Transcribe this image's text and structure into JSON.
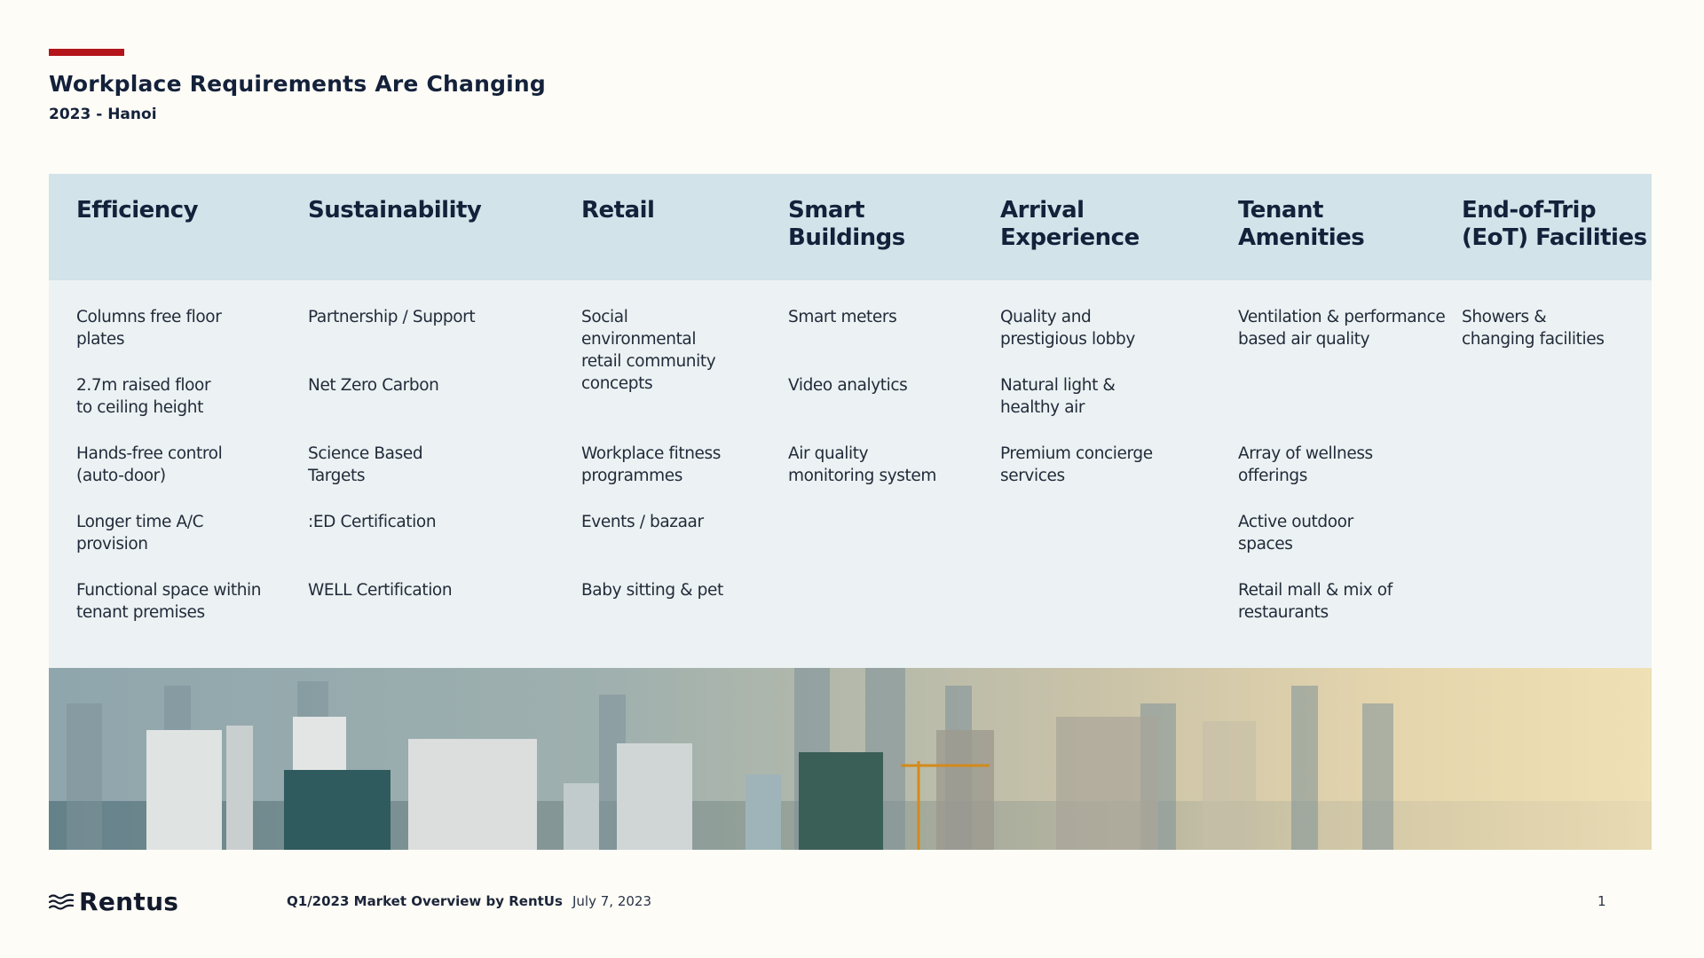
{
  "header": {
    "title": "Workplace Requirements Are Changing",
    "subtitle": "2023 - Hanoi",
    "accent_color": "#b3151a"
  },
  "table": {
    "columns": [
      {
        "heading": [
          "Efficiency"
        ],
        "items": [
          [
            "Columns free floor",
            "plates"
          ],
          [
            "2.7m raised floor",
            "to ceiling height"
          ],
          [
            "Hands-free control",
            "(auto-door)"
          ],
          [
            "Longer time A/C",
            "provision"
          ],
          [
            "Functional space within",
            "tenant premises"
          ]
        ]
      },
      {
        "heading": [
          "Sustainability"
        ],
        "items": [
          [
            "Partnership / Support"
          ],
          [
            "Net Zero Carbon"
          ],
          [
            "Science Based",
            "Targets"
          ],
          [
            ":ED Certification"
          ],
          [
            "WELL Certification"
          ]
        ]
      },
      {
        "heading": [
          "Retail"
        ],
        "items": [
          [
            "Social",
            "environmental",
            "retail community",
            "concepts"
          ],
          [],
          [
            "Workplace fitness",
            "programmes"
          ],
          [
            "Events / bazaar"
          ],
          [
            "Baby sitting & pet"
          ]
        ]
      },
      {
        "heading": [
          "Smart",
          "Buildings"
        ],
        "items": [
          [
            "Smart meters"
          ],
          [
            "Video analytics"
          ],
          [
            "Air quality",
            "monitoring system"
          ],
          [],
          []
        ]
      },
      {
        "heading": [
          "Arrival",
          "Experience"
        ],
        "items": [
          [
            "Quality and",
            "prestigious lobby"
          ],
          [
            "Natural light &",
            "healthy air"
          ],
          [
            "Premium concierge",
            "services"
          ],
          [],
          []
        ]
      },
      {
        "heading": [
          "Tenant",
          "Amenities"
        ],
        "items": [
          [
            "Ventilation & performance",
            "based air quality"
          ],
          [],
          [
            "Array of wellness",
            "offerings"
          ],
          [
            "Active outdoor",
            "spaces"
          ],
          [
            "Retail mall & mix of",
            "restaurants"
          ]
        ]
      },
      {
        "heading": [
          "End-of-Trip",
          "(EoT) Facilities"
        ],
        "items": [
          [
            "Showers &",
            "changing facilities"
          ],
          [],
          [],
          [],
          []
        ]
      }
    ],
    "header_bg": "#d2e3ea",
    "body_bg": "#ecf2f3"
  },
  "photo": {
    "icon": "city-skyline-photo"
  },
  "footer": {
    "logo_icon": "waves-logo-icon",
    "logo_text": "Rentus",
    "report_title": "Q1/2023 Market Overview by RentUs",
    "date": "July 7, 2023",
    "page_number": "1"
  }
}
